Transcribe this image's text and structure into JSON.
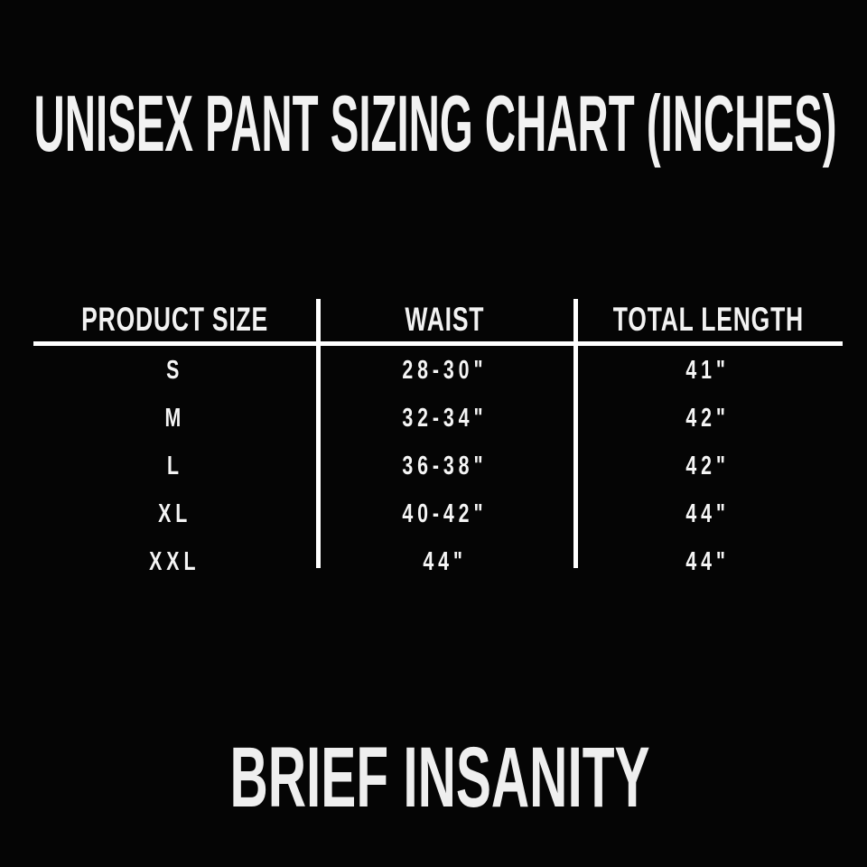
{
  "page": {
    "background_color": "#050505",
    "text_color": "#f5f5f5",
    "line_color": "#ffffff"
  },
  "title": "UNISEX PANT SIZING CHART (INCHES)",
  "brand": "BRIEF INSANITY",
  "table": {
    "columns": [
      "PRODUCT SIZE",
      "WAIST",
      "TOTAL LENGTH"
    ],
    "rows": [
      {
        "size": "S",
        "waist": "28-30\"",
        "total_length": "41\""
      },
      {
        "size": "M",
        "waist": "32-34\"",
        "total_length": "42\""
      },
      {
        "size": "L",
        "waist": "36-38\"",
        "total_length": "42\""
      },
      {
        "size": "XL",
        "waist": "40-42\"",
        "total_length": "44\""
      },
      {
        "size": "XXL",
        "waist": "44\"",
        "total_length": "44\""
      }
    ]
  },
  "chart_data": {
    "type": "table",
    "title": "UNISEX PANT SIZING CHART (INCHES)",
    "columns": [
      "PRODUCT SIZE",
      "WAIST",
      "TOTAL LENGTH"
    ],
    "rows": [
      [
        "S",
        "28-30\"",
        "41\""
      ],
      [
        "M",
        "32-34\"",
        "42\""
      ],
      [
        "L",
        "36-38\"",
        "42\""
      ],
      [
        "XL",
        "40-42\"",
        "44\""
      ],
      [
        "XXL",
        "44\"",
        "44\""
      ]
    ],
    "units": "inches",
    "footer_brand": "BRIEF INSANITY"
  }
}
